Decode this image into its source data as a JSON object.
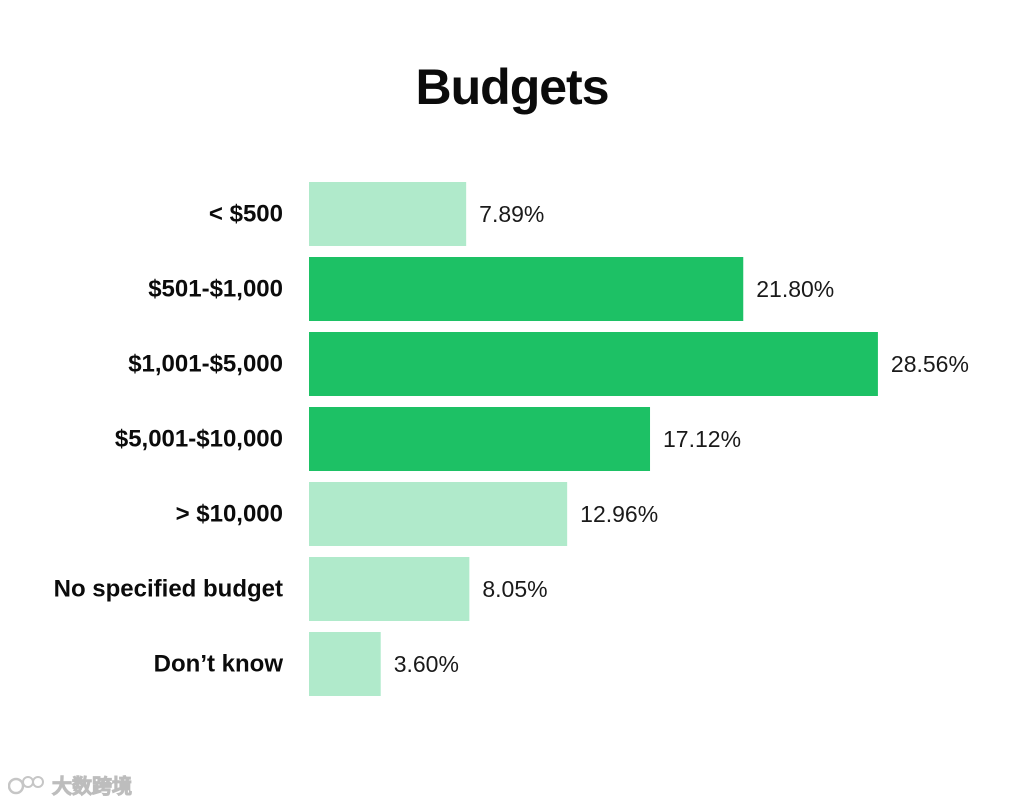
{
  "chart_data": {
    "type": "bar",
    "orientation": "horizontal",
    "title": "Budgets",
    "xlabel": "",
    "ylabel": "",
    "xlim": [
      0,
      30
    ],
    "grid": false,
    "legend": "none",
    "categories": [
      "< $500",
      "$501-$1,000",
      "$1,001-$5,000",
      "$5,001-$10,000",
      "> $10,000",
      "No specified budget",
      "Don’t know"
    ],
    "values": [
      7.89,
      21.8,
      28.56,
      17.12,
      12.96,
      8.05,
      3.6
    ],
    "value_labels": [
      "7.89%",
      "21.80%",
      "28.56%",
      "17.12%",
      "12.96%",
      "8.05%",
      "3.60%"
    ],
    "highlighted": [
      false,
      true,
      true,
      true,
      false,
      false,
      false
    ],
    "colors": {
      "highlight": "#1dc165",
      "normal": "#b0eacb"
    }
  },
  "watermark": {
    "text": "大数跨境"
  }
}
